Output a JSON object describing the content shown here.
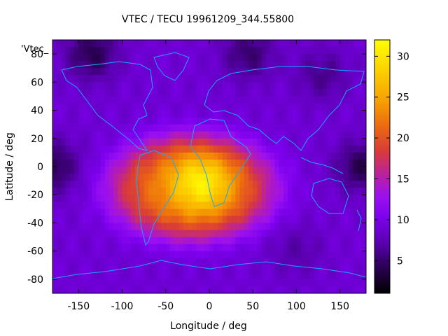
{
  "chart_data": {
    "type": "heatmap",
    "title": "VTEC / TECU 19961209_344.55800",
    "series_label": "'Vtec_",
    "xlabel": "Longitude / deg",
    "ylabel": "Latitude / deg",
    "xlim": [
      -180,
      180
    ],
    "ylim": [
      -90,
      90
    ],
    "x_ticks": [
      -150,
      -100,
      -50,
      0,
      50,
      100,
      150
    ],
    "y_ticks": [
      80,
      60,
      40,
      20,
      0,
      -20,
      -40,
      -60,
      -80
    ],
    "x_tick_labels": [
      "-150",
      "-100",
      "-50",
      "0",
      "50",
      "100",
      "150"
    ],
    "y_tick_labels": [
      "80",
      "60",
      "40",
      "20",
      "0",
      "-20",
      "-40",
      "-60",
      "-80"
    ],
    "colorbar": {
      "range": [
        1,
        32
      ],
      "ticks": [
        30,
        25,
        20,
        15,
        10,
        5
      ],
      "tick_labels": [
        "30",
        "25",
        "20",
        "15",
        "10",
        "5"
      ],
      "colormap": [
        "#000000",
        "#2a0052",
        "#5a00b0",
        "#7d00ee",
        "#9a10f0",
        "#b81fa8",
        "#d83a3a",
        "#ec6a10",
        "#f6a000",
        "#fcd000",
        "#ffff00"
      ]
    },
    "vtec_field": {
      "background_tecu": 9,
      "peak": {
        "lon": -10,
        "lat": -12,
        "tecu": 31
      },
      "enhanced_band": {
        "lon_range": [
          -120,
          80
        ],
        "lat_range": [
          -55,
          25
        ],
        "tecu_range": [
          18,
          26
        ]
      },
      "low_regions": [
        {
          "lon": -135,
          "lat": 80,
          "tecu": 4
        },
        {
          "lon": 45,
          "lat": 80,
          "tecu": 5
        },
        {
          "lon": -180,
          "lat": 0,
          "tecu": 4
        },
        {
          "lon": 175,
          "lat": 0,
          "tecu": 4
        },
        {
          "lon": 130,
          "lat": 65,
          "tecu": 6
        },
        {
          "lon": 100,
          "lat": -60,
          "tecu": 7
        }
      ]
    },
    "overlay": "continent coastlines (cyan)",
    "grid": false
  },
  "colors": {
    "coastline": "#19a7ff",
    "axis": "#000000"
  }
}
